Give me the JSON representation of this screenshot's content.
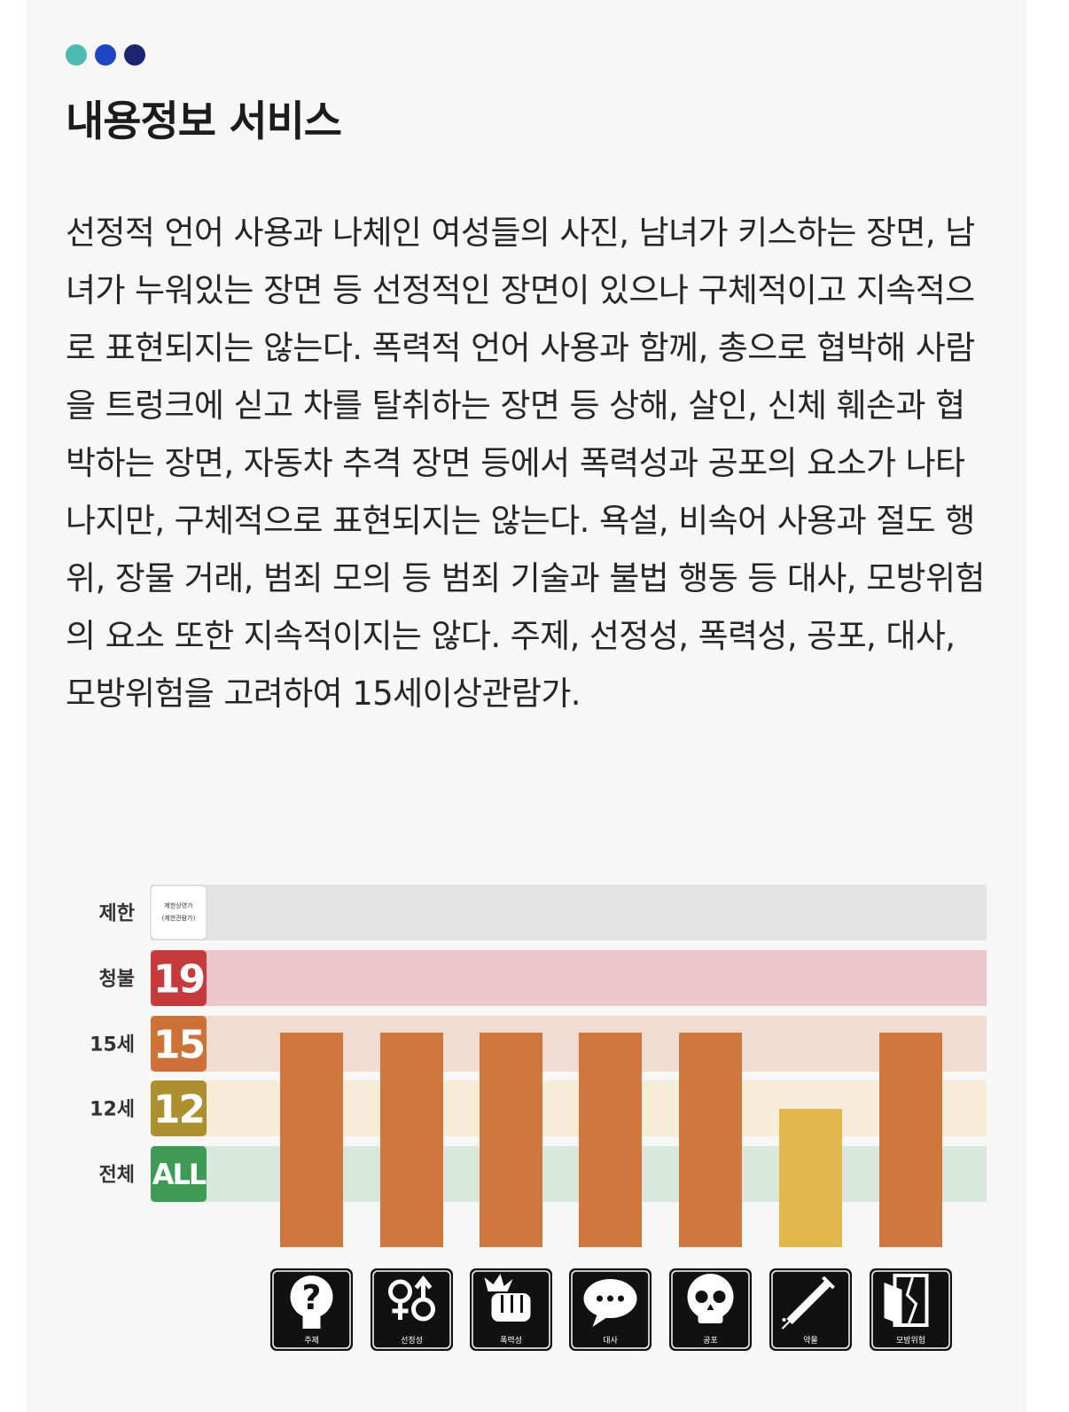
{
  "section": {
    "title": "내용정보 서비스",
    "dots": [
      "#4dbbb0",
      "#1f44c4",
      "#1d2673"
    ]
  },
  "description": "선정적 언어 사용과 나체인 여성들의 사진, 남녀가 키스하는 장면, 남녀가 누워있는 장면 등 선정적인 장면이 있으나 구체적이고 지속적으로 표현되지는 않는다. 폭력적 언어 사용과 함께, 총으로 협박해 사람을 트렁크에 싣고 차를 탈취하는 장면 등 상해, 살인, 신체 훼손과 협박하는 장면, 자동차 추격 장면 등에서 폭력성과 공포의 요소가 나타나지만, 구체적으로 표현되지는 않는다. 욕설, 비속어 사용과 절도 행위, 장물 거래, 범죄 모의 등 범죄 기술과 불법 행동 등 대사, 모방위험의 요소 또한 지속적이지는 않다. 주제, 선정성, 폭력성, 공포, 대사, 모방위험을 고려하여 15세이상관람가.",
  "chart_data": {
    "type": "bar",
    "levels": [
      {
        "label": "제한",
        "badge": "제한상영가",
        "badge_sub": "(제한관람가)",
        "band_color": "#e3e3e3",
        "badge_color": "#ffffff"
      },
      {
        "label": "청불",
        "badge": "19",
        "band_color": "#ecc6cb",
        "badge_color": "#c63a3c"
      },
      {
        "label": "15세",
        "badge": "15",
        "band_color": "#f0dcd0",
        "badge_color": "#cd7139"
      },
      {
        "label": "12세",
        "badge": "12",
        "band_color": "#f6ecd7",
        "badge_color": "#ad8f30"
      },
      {
        "label": "전체",
        "badge": "ALL",
        "band_color": "#d9e8dd",
        "badge_color": "#3e9a55"
      }
    ],
    "categories": [
      "주제",
      "선정성",
      "폭력성",
      "대사",
      "공포",
      "약물",
      "모방위험"
    ],
    "values": [
      "15세",
      "15세",
      "15세",
      "15세",
      "15세",
      "12세",
      "15세"
    ],
    "bar_colors": {
      "15세": "#cf773d",
      "12세": "#e1b74e"
    },
    "icons": [
      "question-head-icon",
      "gender-symbols-icon",
      "fist-icon",
      "speech-bubble-icon",
      "skull-icon",
      "syringe-icon",
      "broken-door-icon"
    ]
  }
}
